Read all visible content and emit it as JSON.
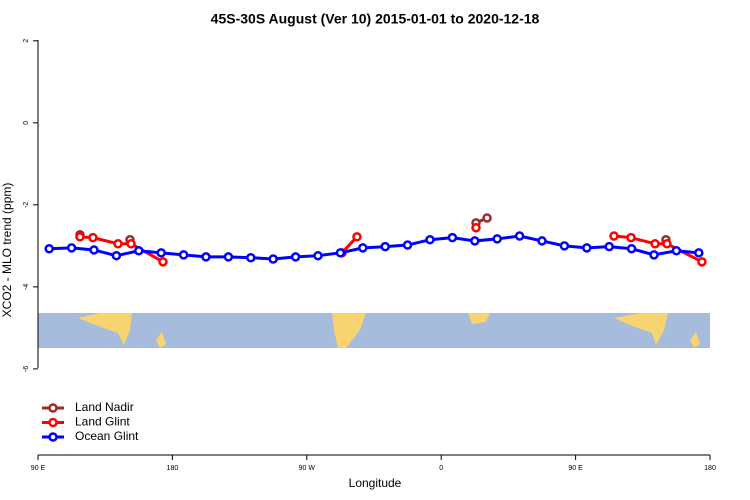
{
  "chart_data": {
    "type": "line",
    "title": "45S-30S August (Ver 10)   2015-01-01 to 2020-12-18",
    "x_label": "Longitude",
    "y_label": "XCO2 - MLO trend (ppm)",
    "xlim": [
      90,
      540
    ],
    "ylim": [
      -8.1,
      2
    ],
    "xticks": [
      {
        "value": 90,
        "label": "90 E"
      },
      {
        "value": 180,
        "label": "180"
      },
      {
        "value": 270,
        "label": "90 W"
      },
      {
        "value": 360,
        "label": "0"
      },
      {
        "value": 450,
        "label": "90 E"
      },
      {
        "value": 540,
        "label": "180"
      }
    ],
    "yticks": [
      2,
      0,
      -2,
      -4,
      -6
    ],
    "legend": "bottom-left",
    "series": [
      {
        "name": "Land Nadir",
        "color": "#a0282c",
        "x": [
          118.1,
          null,
          151.6,
          null,
          383.3,
          390.7,
          null,
          510.5
        ],
        "values": [
          -2.73,
          null,
          -2.85,
          null,
          -2.44,
          -2.32,
          null,
          -2.85
        ]
      },
      {
        "name": "Land Glint",
        "color": "#ff0000",
        "x": [
          118.1,
          126.8,
          143.6,
          152.3,
          173.7,
          null,
          293.6,
          303.6,
          null,
          383.3,
          null,
          475.7,
          487.1,
          503.2,
          511.2,
          534.6
        ],
        "values": [
          -2.78,
          -2.8,
          -2.95,
          -2.95,
          -3.39,
          null,
          -3.17,
          -2.78,
          null,
          -2.56,
          null,
          -2.76,
          -2.8,
          -2.95,
          -2.95,
          -3.39
        ]
      },
      {
        "name": "Ocean Glint",
        "color": "#0000ff",
        "x": [
          97.5,
          112.5,
          127.5,
          142.5,
          157.5,
          172.5,
          187.5,
          202.5,
          217.5,
          232.5,
          247.5,
          262.5,
          277.5,
          292.5,
          307.5,
          322.5,
          337.5,
          352.5,
          367.5,
          382.5,
          397.5,
          412.5,
          427.5,
          442.5,
          457.5,
          472.5,
          487.5,
          502.5,
          517.5,
          532.5
        ],
        "values": [
          -3.07,
          -3.05,
          -3.1,
          -3.24,
          -3.12,
          -3.17,
          -3.22,
          -3.27,
          -3.27,
          -3.29,
          -3.32,
          -3.27,
          -3.24,
          -3.17,
          -3.05,
          -3.02,
          -2.98,
          -2.85,
          -2.8,
          -2.88,
          -2.83,
          -2.76,
          -2.88,
          -3.0,
          -3.05,
          -3.02,
          -3.07,
          -3.22,
          -3.12,
          -3.17
        ]
      }
    ]
  }
}
